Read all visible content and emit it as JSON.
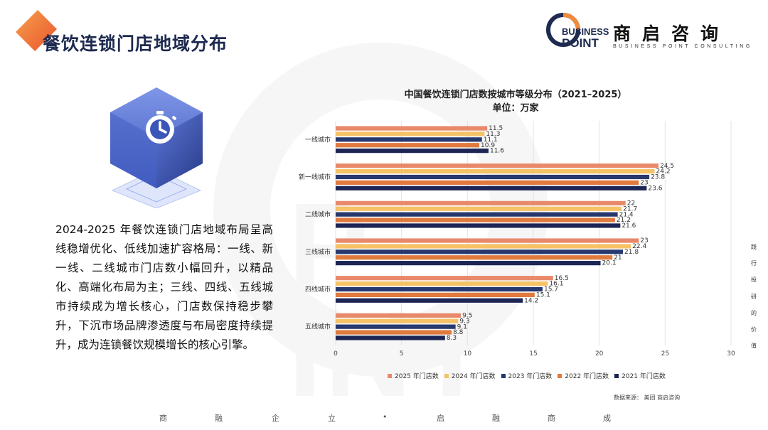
{
  "header": {
    "title": "餐饮连锁门店地域分布"
  },
  "logo": {
    "en_line1": "BUSINESS",
    "en_line2": "POINT",
    "cn": "商启咨询",
    "sub": "BUSINESS POINT CONSULTING"
  },
  "illustration": {
    "icon": "stopwatch-icon"
  },
  "description": "2024-2025 年餐饮连锁门店地域布局呈高线稳增优化、低线加速扩容格局：一线、新一线、二线城市门店数小幅回升，以精品化、高端化布局为主；三线、四线、五线城市持续成为增长核心，门店数保持稳步攀升，下沉市场品牌渗透度与布局密度持续提升，成为连锁餐饮规模增长的核心引擎。",
  "chart_data": {
    "type": "bar",
    "orientation": "horizontal",
    "title": "中国餐饮连锁门店数按城市等级分布（2021–2025）",
    "subtitle": "单位：万家",
    "categories": [
      "一线城市",
      "新一线城市",
      "二线城市",
      "三线城市",
      "四线城市",
      "五线城市"
    ],
    "series": [
      {
        "name": "2025 年门店数",
        "color": "#e8896a",
        "values": [
          11.5,
          24.5,
          22,
          23,
          16.5,
          9.5
        ]
      },
      {
        "name": "2024 年门店数",
        "color": "#f6c266",
        "values": [
          11.3,
          24.2,
          21.7,
          22.4,
          16.1,
          9.3
        ]
      },
      {
        "name": "2023 年门店数",
        "color": "#26386e",
        "values": [
          11.1,
          23.8,
          21.4,
          21.8,
          15.7,
          9.1
        ]
      },
      {
        "name": "2022 年门店数",
        "color": "#e07a3f",
        "values": [
          10.9,
          23,
          21.2,
          21,
          15.1,
          8.8
        ]
      },
      {
        "name": "2021 年门店数",
        "color": "#1c2554",
        "values": [
          11.6,
          23.6,
          21.6,
          20.1,
          14.2,
          8.3
        ]
      }
    ],
    "xlim": [
      0,
      30
    ],
    "xticks": [
      0,
      5,
      10,
      15,
      20,
      25,
      30
    ],
    "grid": true,
    "legend_position": "bottom"
  },
  "source": "数据来源：  美团        商启咨询",
  "side_text": [
    "践",
    "行",
    "投",
    "研",
    "的",
    "价",
    "值"
  ],
  "footer": [
    "商",
    "融",
    "企",
    "立",
    "•",
    "启",
    "融",
    "商",
    "成"
  ]
}
